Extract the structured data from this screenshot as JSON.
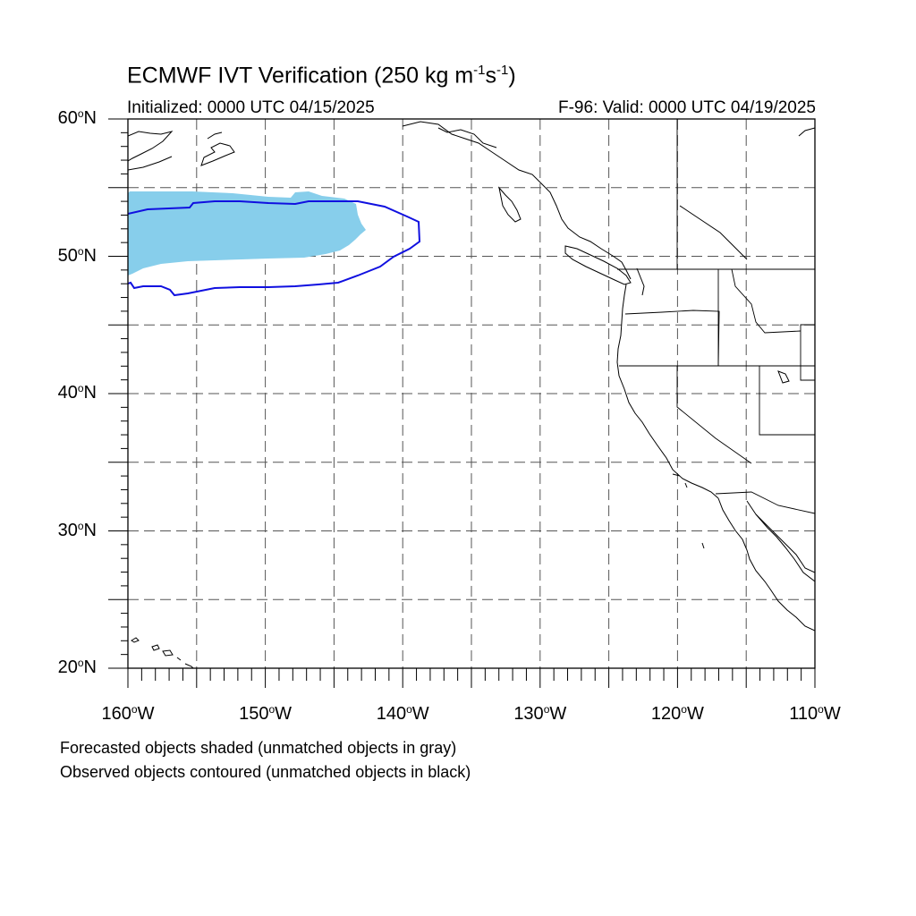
{
  "title": {
    "main": "ECMWF IVT Verification (250 kg m",
    "exp1": "-1",
    "mid": "s",
    "exp2": "-1",
    "end": ")"
  },
  "subtitle": {
    "left": "Initialized: 0000 UTC 04/15/2025",
    "right": "F-96: Valid: 0000 UTC 04/19/2025"
  },
  "axes": {
    "lat_labels": [
      {
        "value": "60",
        "suffix": "N"
      },
      {
        "value": "50",
        "suffix": "N"
      },
      {
        "value": "40",
        "suffix": "N"
      },
      {
        "value": "30",
        "suffix": "N"
      },
      {
        "value": "20",
        "suffix": "N"
      }
    ],
    "lon_labels": [
      {
        "value": "160",
        "suffix": "W"
      },
      {
        "value": "150",
        "suffix": "W"
      },
      {
        "value": "140",
        "suffix": "W"
      },
      {
        "value": "130",
        "suffix": "W"
      },
      {
        "value": "120",
        "suffix": "W"
      },
      {
        "value": "110",
        "suffix": "W"
      }
    ],
    "lon_range": [
      -160,
      -110
    ],
    "lat_range": [
      20,
      60
    ],
    "grid": "dashed every 5 degrees"
  },
  "legend_notes": [
    "Forecasted objects shaded (unmatched objects in gray)",
    "Observed objects contoured (unmatched objects in black)"
  ],
  "colors": {
    "forecast_fill": "#87ceeb",
    "observed_contour": "#0000ee",
    "coastline": "#000000",
    "grid": "#555555"
  }
}
